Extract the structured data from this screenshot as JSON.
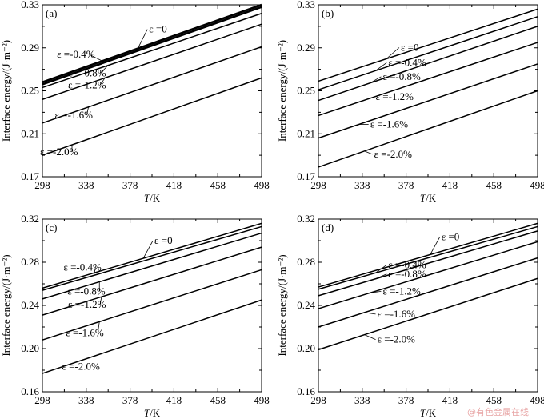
{
  "watermark": "@有色金属在线",
  "chart_data": [
    {
      "type": "line",
      "panel_label": "(a)",
      "xlabel_italic": "T",
      "xlabel_rest": "/K",
      "ylabel": "Interface energy/(J·m⁻²)",
      "xlim": [
        298,
        498
      ],
      "ylim": [
        0.17,
        0.33
      ],
      "x_ticks": [
        "298",
        "338",
        "378",
        "418",
        "458",
        "498"
      ],
      "y_ticks": [
        "0.17",
        "0.21",
        "0.25",
        "0.29",
        "0.33"
      ],
      "grid": false,
      "series": [
        {
          "name": "ε =0",
          "x": [
            298,
            498
          ],
          "y": [
            0.258,
            0.33
          ],
          "bold": true
        },
        {
          "name": "ε =-0.4%",
          "x": [
            298,
            498
          ],
          "y": [
            0.256,
            0.328
          ],
          "bold": true
        },
        {
          "name": "ε =-0.8%",
          "x": [
            298,
            498
          ],
          "y": [
            0.253,
            0.322
          ],
          "bold": false
        },
        {
          "name": "ε =-1.2%",
          "x": [
            298,
            498
          ],
          "y": [
            0.242,
            0.312
          ],
          "bold": false
        },
        {
          "name": "ε =-1.6%",
          "x": [
            298,
            498
          ],
          "y": [
            0.22,
            0.291
          ],
          "bold": false
        },
        {
          "name": "ε =-2.0%",
          "x": [
            298,
            498
          ],
          "y": [
            0.19,
            0.262
          ],
          "bold": false
        }
      ]
    },
    {
      "type": "line",
      "panel_label": "(b)",
      "xlabel_italic": "T",
      "xlabel_rest": "/K",
      "ylabel": "Interface energy/(J·m⁻²)",
      "xlim": [
        298,
        498
      ],
      "ylim": [
        0.17,
        0.33
      ],
      "x_ticks": [
        "298",
        "338",
        "378",
        "418",
        "458",
        "498"
      ],
      "y_ticks": [
        "0.17",
        "0.21",
        "0.25",
        "0.29",
        "0.33"
      ],
      "grid": false,
      "series": [
        {
          "name": "ε =0",
          "x": [
            298,
            498
          ],
          "y": [
            0.259,
            0.326
          ],
          "bold": false
        },
        {
          "name": "ε =-0.4%",
          "x": [
            298,
            498
          ],
          "y": [
            0.251,
            0.319
          ],
          "bold": false
        },
        {
          "name": "ε =-0.8%",
          "x": [
            298,
            498
          ],
          "y": [
            0.241,
            0.31
          ],
          "bold": false
        },
        {
          "name": "ε =-1.2%",
          "x": [
            298,
            498
          ],
          "y": [
            0.227,
            0.295
          ],
          "bold": false
        },
        {
          "name": "ε =-1.6%",
          "x": [
            298,
            498
          ],
          "y": [
            0.206,
            0.275
          ],
          "bold": false
        },
        {
          "name": "ε =-2.0%",
          "x": [
            298,
            498
          ],
          "y": [
            0.179,
            0.25
          ],
          "bold": false
        }
      ]
    },
    {
      "type": "line",
      "panel_label": "(c)",
      "xlabel_italic": "T",
      "xlabel_rest": "/K",
      "ylabel": "Interface energy/(J·m⁻²)",
      "xlim": [
        298,
        498
      ],
      "ylim": [
        0.16,
        0.32
      ],
      "x_ticks": [
        "298",
        "338",
        "378",
        "418",
        "458",
        "498"
      ],
      "y_ticks": [
        "0.16",
        "0.20",
        "0.24",
        "0.28",
        "0.32"
      ],
      "grid": false,
      "series": [
        {
          "name": "ε =0",
          "x": [
            298,
            498
          ],
          "y": [
            0.256,
            0.316
          ],
          "bold": false
        },
        {
          "name": "ε =-0.4%",
          "x": [
            298,
            498
          ],
          "y": [
            0.254,
            0.313
          ],
          "bold": false
        },
        {
          "name": "ε =-0.8%",
          "x": [
            298,
            498
          ],
          "y": [
            0.246,
            0.307
          ],
          "bold": false
        },
        {
          "name": "ε =-1.2%",
          "x": [
            298,
            498
          ],
          "y": [
            0.231,
            0.294
          ],
          "bold": false
        },
        {
          "name": "ε =-1.6%",
          "x": [
            298,
            498
          ],
          "y": [
            0.208,
            0.273
          ],
          "bold": false
        },
        {
          "name": "ε =-2.0%",
          "x": [
            298,
            498
          ],
          "y": [
            0.177,
            0.245
          ],
          "bold": false
        }
      ]
    },
    {
      "type": "line",
      "panel_label": "(d)",
      "xlabel_italic": "T",
      "xlabel_rest": "/K",
      "ylabel": "Interface energy/(J·m⁻²)",
      "xlim": [
        298,
        498
      ],
      "ylim": [
        0.16,
        0.32
      ],
      "x_ticks": [
        "298",
        "338",
        "378",
        "418",
        "458",
        "498"
      ],
      "y_ticks": [
        "0.16",
        "0.20",
        "0.24",
        "0.28",
        "0.32"
      ],
      "grid": false,
      "series": [
        {
          "name": "ε =0",
          "x": [
            298,
            498
          ],
          "y": [
            0.257,
            0.316
          ],
          "bold": false
        },
        {
          "name": "ε =-0.4%",
          "x": [
            298,
            498
          ],
          "y": [
            0.255,
            0.313
          ],
          "bold": false
        },
        {
          "name": "ε =-0.8%",
          "x": [
            298,
            498
          ],
          "y": [
            0.249,
            0.309
          ],
          "bold": false
        },
        {
          "name": "ε =-1.2%",
          "x": [
            298,
            498
          ],
          "y": [
            0.237,
            0.299
          ],
          "bold": false
        },
        {
          "name": "ε =-1.6%",
          "x": [
            298,
            498
          ],
          "y": [
            0.22,
            0.284
          ],
          "bold": false
        },
        {
          "name": "ε =-2.0%",
          "x": [
            298,
            498
          ],
          "y": [
            0.199,
            0.265
          ],
          "bold": false
        }
      ]
    }
  ]
}
